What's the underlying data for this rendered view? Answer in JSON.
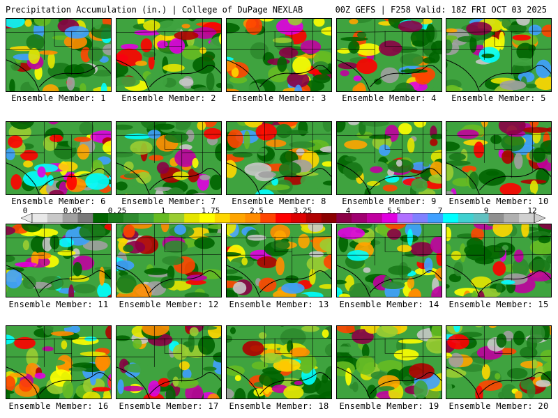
{
  "header": {
    "left_title": "Precipitation Accumulation (in.) | College of DuPage NEXLAB",
    "right_title": "00Z GEFS | F258 Valid: 18Z FRI OCT 03 2025"
  },
  "colorbar": {
    "tick_labels": [
      "0",
      "0.05",
      "0.25",
      "1",
      "1.75",
      "2.5",
      "3.25",
      "4",
      "5.5",
      "7",
      "9",
      "12"
    ],
    "colors": [
      "#e8e8e8",
      "#c8c8c8",
      "#a0a0a0",
      "#787878",
      "#006400",
      "#1a7a1a",
      "#2e8b2e",
      "#3fa33f",
      "#66bb22",
      "#9acd32",
      "#e5e500",
      "#ffff00",
      "#ffd700",
      "#ffa500",
      "#ff8c00",
      "#ff4500",
      "#ff0000",
      "#dd0000",
      "#b00000",
      "#8b0000",
      "#8b0046",
      "#a00070",
      "#c000a0",
      "#e000e0",
      "#b070ff",
      "#8080ff",
      "#40a0ff",
      "#00ffff",
      "#40d0d0",
      "#60c0c0",
      "#909090",
      "#b0b0b0",
      "#d0d0d0"
    ]
  },
  "panels": [
    {
      "label": "Ensemble Member: 1"
    },
    {
      "label": "Ensemble Member: 2"
    },
    {
      "label": "Ensemble Member: 3"
    },
    {
      "label": "Ensemble Member: 4"
    },
    {
      "label": "Ensemble Member: 5"
    },
    {
      "label": "Ensemble Member: 6"
    },
    {
      "label": "Ensemble Member: 7"
    },
    {
      "label": "Ensemble Member: 8"
    },
    {
      "label": "Ensemble Member: 9"
    },
    {
      "label": "Ensemble Member: 10"
    },
    {
      "label": "Ensemble Member: 11"
    },
    {
      "label": "Ensemble Member: 12"
    },
    {
      "label": "Ensemble Member: 13"
    },
    {
      "label": "Ensemble Member: 14"
    },
    {
      "label": "Ensemble Member: 15"
    },
    {
      "label": "Ensemble Member: 16"
    },
    {
      "label": "Ensemble Member: 17"
    },
    {
      "label": "Ensemble Member: 18"
    },
    {
      "label": "Ensemble Member: 19"
    },
    {
      "label": "Ensemble Member: 20"
    }
  ]
}
